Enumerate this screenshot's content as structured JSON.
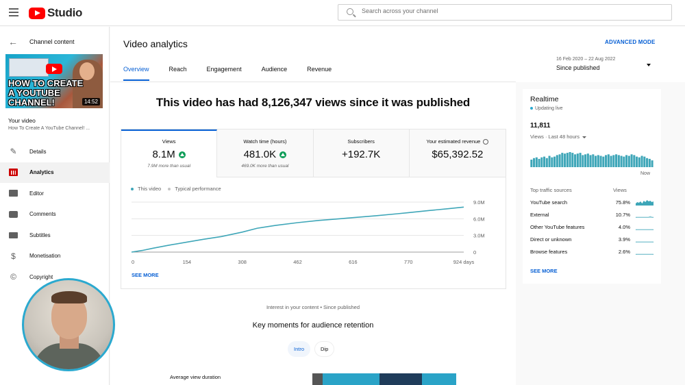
{
  "app": {
    "title": "Studio"
  },
  "search": {
    "placeholder": "Search across your channel"
  },
  "sidebar": {
    "back_label": "Channel content",
    "thumbnail": {
      "lines": [
        "HOW TO CREATE",
        "A YOUTUBE",
        "CHANNEL!"
      ],
      "duration": "14:52"
    },
    "your_video_label": "Your video",
    "video_title": "How To Create A YouTube Channel! ...",
    "items": [
      {
        "label": "Details",
        "icon": "pencil-icon"
      },
      {
        "label": "Analytics",
        "icon": "analytics-icon",
        "active": true
      },
      {
        "label": "Editor",
        "icon": "film-icon"
      },
      {
        "label": "Comments",
        "icon": "comment-icon"
      },
      {
        "label": "Subtitles",
        "icon": "subtitles-icon"
      },
      {
        "label": "Monetisation",
        "icon": "dollar-icon"
      },
      {
        "label": "Copyright",
        "icon": "copyright-icon"
      }
    ]
  },
  "header": {
    "title": "Video analytics",
    "advanced_mode": "ADVANCED MODE",
    "tabs": [
      "Overview",
      "Reach",
      "Engagement",
      "Audience",
      "Revenue"
    ],
    "active_tab": "Overview",
    "date_range": "16 Feb 2020 – 22 Aug 2022",
    "date_label": "Since published"
  },
  "overview": {
    "headline": "This video has had 8,126,347 views since it was published",
    "metrics": [
      {
        "label": "Views",
        "value": "8.1M",
        "sub": "7.9M more than usual",
        "trend": "up"
      },
      {
        "label": "Watch time (hours)",
        "value": "481.0K",
        "sub": "469.0K more than usual",
        "trend": "up"
      },
      {
        "label": "Subscribers",
        "value": "+192.7K",
        "sub": ""
      },
      {
        "label": "Your estimated revenue",
        "value": "$65,392.52",
        "sub": ""
      }
    ],
    "legend": [
      {
        "name": "This video",
        "color": "#3ea6b8"
      },
      {
        "name": "Typical performance",
        "color": "#c4c4c4"
      }
    ],
    "see_more": "SEE MORE"
  },
  "chart_data": {
    "type": "line",
    "title": "",
    "xlabel": "",
    "ylabel": "",
    "x_ticks": [
      "0",
      "154",
      "308",
      "462",
      "616",
      "770",
      "924 days"
    ],
    "y_ticks": [
      "0",
      "3.0M",
      "6.0M",
      "9.0M"
    ],
    "xlim": [
      0,
      924
    ],
    "ylim": [
      0,
      9000000
    ],
    "y_axis_side": "right",
    "grid": true,
    "series": [
      {
        "name": "This video",
        "color": "#3ea6b8",
        "x": [
          0,
          30,
          60,
          100,
          154,
          200,
          250,
          308,
          350,
          400,
          462,
          520,
          580,
          616,
          680,
          740,
          770,
          830,
          880,
          924
        ],
        "y": [
          0,
          300000,
          700000,
          1200000,
          1800000,
          2300000,
          2800000,
          3600000,
          4300000,
          4800000,
          5300000,
          5700000,
          6000000,
          6200000,
          6550000,
          6900000,
          7100000,
          7500000,
          7800000,
          8100000
        ]
      }
    ]
  },
  "retention": {
    "interest_label": "Interest in your content • Since published",
    "title": "Key moments for audience retention",
    "chips": [
      "Intro",
      "Dip"
    ],
    "active_chip": "Intro",
    "avg_view_duration_label": "Average view duration"
  },
  "realtime": {
    "title": "Realtime",
    "live_label": "Updating live",
    "count": "11,811",
    "views_label": "Views · Last 48 hours",
    "now_label": "Now",
    "bars": [
      10,
      12,
      13,
      11,
      13,
      14,
      12,
      15,
      13,
      14,
      16,
      17,
      19,
      18,
      19,
      20,
      19,
      17,
      18,
      19,
      16,
      17,
      18,
      16,
      17,
      15,
      16,
      15,
      14,
      16,
      17,
      15,
      16,
      17,
      16,
      15,
      14,
      16,
      15,
      17,
      16,
      14,
      13,
      15,
      14,
      12,
      11,
      9
    ],
    "accent": "#3ea6b8",
    "traffic_header": {
      "source": "Top traffic sources",
      "views": "Views"
    },
    "traffic": [
      {
        "source": "YouTube search",
        "pct": "75.8%"
      },
      {
        "source": "External",
        "pct": "10.7%"
      },
      {
        "source": "Other YouTube features",
        "pct": "4.0%"
      },
      {
        "source": "Direct or unknown",
        "pct": "3.9%"
      },
      {
        "source": "Browse features",
        "pct": "2.6%"
      }
    ],
    "see_more": "SEE MORE"
  }
}
